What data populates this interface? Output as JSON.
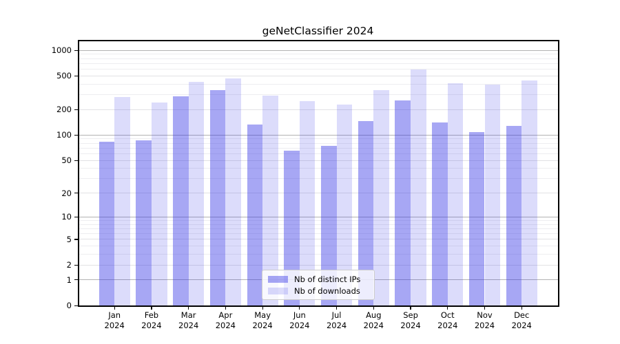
{
  "title": "geNetClassifier 2024",
  "chart_data": {
    "type": "bar",
    "title": "geNetClassifier 2024",
    "categories": [
      "Jan 2024",
      "Feb 2024",
      "Mar 2024",
      "Apr 2024",
      "May 2024",
      "Jun 2024",
      "Jul 2024",
      "Aug 2024",
      "Sep 2024",
      "Oct 2024",
      "Nov 2024",
      "Dec 2024"
    ],
    "series": [
      {
        "name": "Nb of distinct IPs",
        "color": "#a8a8f4",
        "values": [
          84,
          86,
          288,
          338,
          133,
          65,
          75,
          147,
          255,
          140,
          109,
          129
        ]
      },
      {
        "name": "Nb of downloads",
        "color": "#d9d9fa",
        "values": [
          281,
          243,
          425,
          470,
          293,
          252,
          230,
          340,
          600,
          413,
          398,
          442
        ]
      }
    ],
    "xlabel": "",
    "ylabel": "",
    "y_scale": "log10(1+x)",
    "y_ticks": [
      0,
      1,
      2,
      5,
      10,
      20,
      50,
      100,
      200,
      500,
      1000
    ],
    "y_major_gridlines": [
      1,
      10,
      100,
      1000
    ],
    "y_mid_gridlines": [
      2,
      5,
      20,
      50,
      200,
      500
    ],
    "y_minor_gridlines": [
      3,
      4,
      6,
      7,
      8,
      9,
      30,
      40,
      60,
      70,
      80,
      90,
      300,
      400,
      600,
      700,
      800,
      900
    ],
    "ylim": [
      0,
      1300
    ],
    "grid": true,
    "legend_position": "bottom-center"
  },
  "legend": {
    "items": [
      {
        "label": "Nb of distinct IPs",
        "color": "#a8a8f4"
      },
      {
        "label": "Nb of downloads",
        "color": "#d9d9fa"
      }
    ]
  },
  "colors": {
    "bar_dark": "#a8a8f4",
    "bar_light": "#d9d9fa",
    "grid_major": "#b2b2b2",
    "grid_minor": "#ededf0",
    "axis": "#000000",
    "background": "#ffffff"
  }
}
